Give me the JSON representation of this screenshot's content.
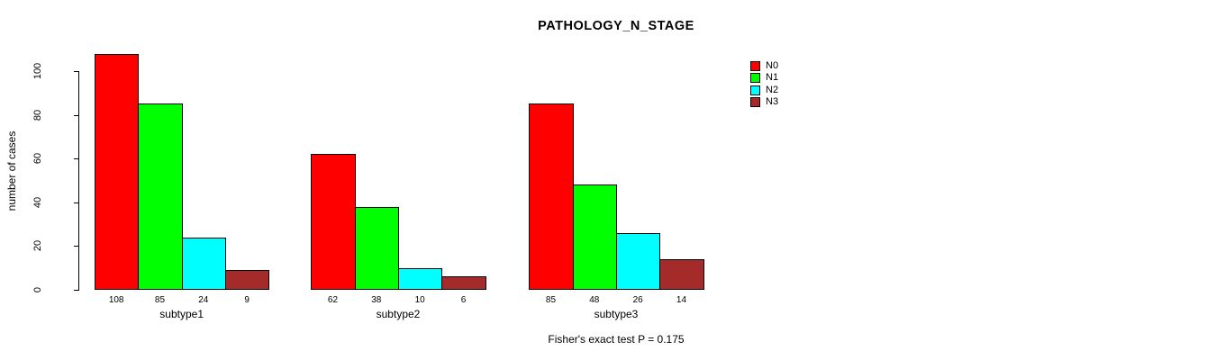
{
  "chart_data": {
    "type": "bar",
    "title": "PATHOLOGY_N_STAGE",
    "ylabel": "number of cases",
    "xlabel": "",
    "categories": [
      "subtype1",
      "subtype2",
      "subtype3"
    ],
    "series": [
      {
        "name": "N0",
        "color": "#FF0000",
        "values": [
          108,
          62,
          85
        ]
      },
      {
        "name": "N1",
        "color": "#00FF00",
        "values": [
          85,
          38,
          48
        ]
      },
      {
        "name": "N2",
        "color": "#00FFFF",
        "values": [
          24,
          10,
          26
        ]
      },
      {
        "name": "N3",
        "color": "#A52A2A",
        "values": [
          9,
          6,
          14
        ]
      }
    ],
    "yticks": [
      0,
      20,
      40,
      60,
      80,
      100
    ],
    "ylim": [
      0,
      108
    ],
    "grid": false,
    "bar_value_labels": true,
    "legend_position": "top-right",
    "annotation": "Fisher's exact test P = 0.175"
  }
}
